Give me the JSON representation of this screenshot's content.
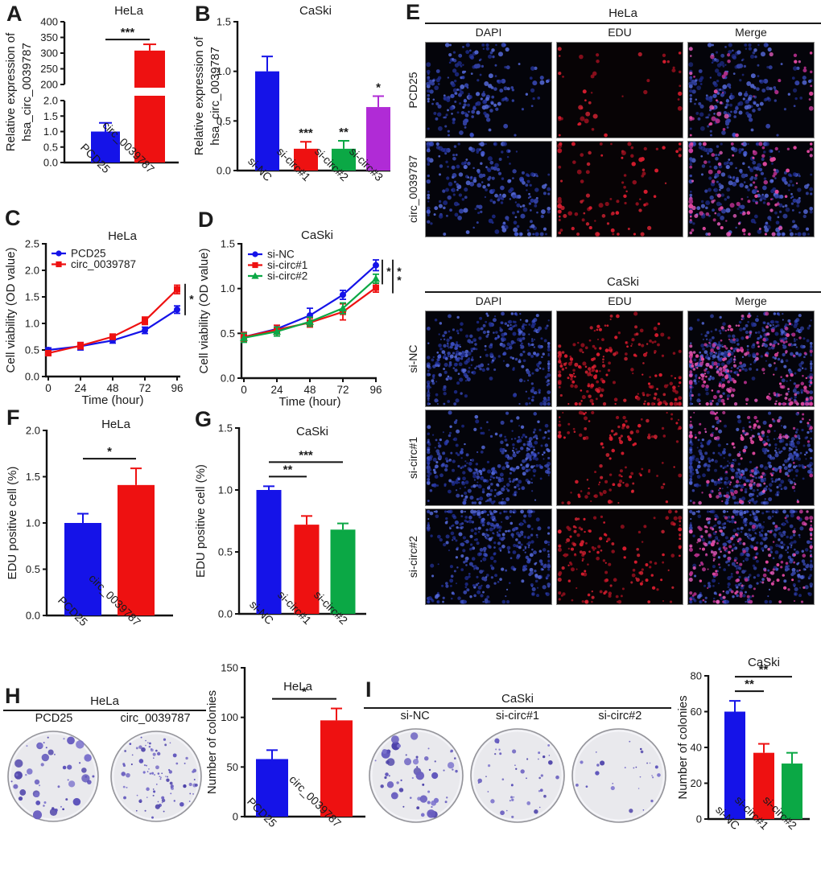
{
  "panel_letters": {
    "a": "A",
    "b": "B",
    "c": "C",
    "d": "D",
    "e": "E",
    "f": "F",
    "g": "G",
    "h": "H",
    "i": "I"
  },
  "accent_colors": {
    "blue": "#1513e8",
    "red": "#ee1111",
    "green": "#0ba845",
    "purple": "#b02bd6"
  },
  "fluorescence_colors": {
    "dapi": [
      "#2a3bb0",
      "#3d52cc",
      "#1e2c8e",
      "#5468d6",
      "#32409f"
    ],
    "edu": [
      "#c01325",
      "#e02535",
      "#97101e",
      "#d61c2e"
    ],
    "merge_red": [
      "#d63fa5",
      "#e65cbd",
      "#b72f8d",
      "#e0489f"
    ],
    "colony": [
      "#5b51ba",
      "#4a3fa8",
      "#6a5fc0",
      "#7a71cc"
    ]
  },
  "micro": {
    "hela": {
      "cell_line": "HeLa",
      "columns": [
        "DAPI",
        "EDU",
        "Merge"
      ],
      "rows": [
        {
          "label": "PCD25",
          "dapi_cells": 210,
          "edu_cells": 42,
          "seed": 11,
          "dot_scale": 1.0
        },
        {
          "label": "circ_0039787",
          "dapi_cells": 255,
          "edu_cells": 95,
          "seed": 23,
          "dot_scale": 1.0
        }
      ]
    },
    "caski": {
      "cell_line": "CaSki",
      "columns": [
        "DAPI",
        "EDU",
        "Merge"
      ],
      "rows": [
        {
          "label": "si-NC",
          "dapi_cells": 400,
          "edu_cells": 225,
          "seed": 37,
          "dot_scale": 0.85
        },
        {
          "label": "si-circ#1",
          "dapi_cells": 400,
          "edu_cells": 125,
          "seed": 49,
          "dot_scale": 0.85
        },
        {
          "label": "si-circ#2",
          "dapi_cells": 400,
          "edu_cells": 160,
          "seed": 61,
          "dot_scale": 0.85
        }
      ]
    }
  },
  "colony_h": {
    "cell_line": "HeLa",
    "dishes": [
      {
        "label": "PCD25",
        "colonies": 50,
        "big": true,
        "seed": 7
      },
      {
        "label": "circ_0039787",
        "colonies": 92,
        "big": false,
        "seed": 8
      }
    ]
  },
  "colony_i": {
    "cell_line": "CaSki",
    "dishes": [
      {
        "label": "si-NC",
        "colonies": 58,
        "big": true,
        "seed": 9
      },
      {
        "label": "si-circ#1",
        "colonies": 42,
        "big": false,
        "seed": 10
      },
      {
        "label": "si-circ#2",
        "colonies": 26,
        "big": false,
        "seed": 12
      }
    ]
  },
  "chart_data": [
    {
      "id": "A",
      "type": "bar",
      "broken_axis": true,
      "title": "HeLa",
      "ylabel_lines": [
        "Relative expression of",
        "hsa_circ_0039787"
      ],
      "categories": [
        "PCD25",
        "circ_0039787"
      ],
      "values": [
        1.0,
        308
      ],
      "errors": [
        0.28,
        20
      ],
      "colors": [
        "blue",
        "red"
      ],
      "axis_top": {
        "ylim": [
          200,
          400
        ],
        "ticks": [
          "200",
          "250",
          "300",
          "350",
          "400"
        ]
      },
      "axis_bottom": {
        "ylim": [
          0,
          2
        ],
        "ticks": [
          "0.0",
          "0.5",
          "1.0",
          "1.5",
          "2.0"
        ]
      },
      "sig_lines": [
        {
          "from": 0,
          "to": 1,
          "stars": "***"
        }
      ]
    },
    {
      "id": "B",
      "type": "bar",
      "title": "CaSki",
      "ylabel_lines": [
        "Relative expression of",
        "hsa_circ_0039787"
      ],
      "categories": [
        "si-NC",
        "si-circ#1",
        "si-circ#2",
        "si-circ#3"
      ],
      "values": [
        1.0,
        0.22,
        0.22,
        0.64
      ],
      "errors": [
        0.15,
        0.07,
        0.08,
        0.11
      ],
      "colors": [
        "blue",
        "red",
        "green",
        "purple"
      ],
      "ylim": [
        0,
        1.5
      ],
      "yticks": [
        "0.0",
        "0.5",
        "1.0",
        "1.5"
      ],
      "bar_stars": [
        "",
        "***",
        "**",
        "*"
      ]
    },
    {
      "id": "C",
      "type": "line",
      "title": "HeLa",
      "xlabel": "Time (hour)",
      "ylabel": "Cell viability (OD value)",
      "x": [
        0,
        24,
        48,
        72,
        96
      ],
      "xticks": [
        "0",
        "24",
        "48",
        "72",
        "96"
      ],
      "ylim": [
        0,
        2.5
      ],
      "yticks": [
        "0.0",
        "0.5",
        "1.0",
        "1.5",
        "2.0",
        "2.5"
      ],
      "series": [
        {
          "name": "PCD25",
          "color": "blue",
          "marker": "circle",
          "values": [
            0.5,
            0.57,
            0.68,
            0.87,
            1.26
          ],
          "errors": [
            0.04,
            0.07,
            0.05,
            0.06,
            0.07
          ]
        },
        {
          "name": "circ_0039787",
          "color": "red",
          "marker": "square",
          "values": [
            0.44,
            0.58,
            0.75,
            1.05,
            1.64
          ],
          "errors": [
            0.04,
            0.06,
            0.05,
            0.07,
            0.08
          ]
        }
      ],
      "brackets": [
        {
          "series_hi": 1,
          "series_lo": 0,
          "stars": "*"
        }
      ]
    },
    {
      "id": "D",
      "type": "line",
      "title": "CaSki",
      "xlabel": "Time (hour)",
      "ylabel": "Cell viability (OD value)",
      "x": [
        0,
        24,
        48,
        72,
        96
      ],
      "xticks": [
        "0",
        "24",
        "48",
        "72",
        "96"
      ],
      "ylim": [
        0,
        1.5
      ],
      "yticks": [
        "0.0",
        "0.5",
        "1.0",
        "1.5"
      ],
      "series": [
        {
          "name": "si-NC",
          "color": "blue",
          "marker": "circle",
          "values": [
            0.46,
            0.55,
            0.7,
            0.93,
            1.26
          ],
          "errors": [
            0.05,
            0.04,
            0.08,
            0.05,
            0.06
          ]
        },
        {
          "name": "si-circ#1",
          "color": "red",
          "marker": "square",
          "values": [
            0.46,
            0.54,
            0.62,
            0.74,
            1.01
          ],
          "errors": [
            0.05,
            0.05,
            0.05,
            0.09,
            0.05
          ]
        },
        {
          "name": "si-circ#2",
          "color": "green",
          "marker": "triangle",
          "values": [
            0.45,
            0.52,
            0.63,
            0.78,
            1.11
          ],
          "errors": [
            0.05,
            0.05,
            0.05,
            0.06,
            0.05
          ]
        }
      ],
      "brackets": [
        {
          "series_hi": 0,
          "series_lo": 2,
          "stars": "*"
        },
        {
          "series_hi": 0,
          "series_lo": 1,
          "stars": "**"
        }
      ]
    },
    {
      "id": "F",
      "type": "bar",
      "title": "HeLa",
      "ylabel": "EDU positive cell (%)",
      "categories": [
        "PCD25",
        "circ_0039787"
      ],
      "values": [
        1.0,
        1.41
      ],
      "errors": [
        0.1,
        0.18
      ],
      "colors": [
        "blue",
        "red"
      ],
      "ylim": [
        0,
        2
      ],
      "yticks": [
        "0.0",
        "0.5",
        "1.0",
        "1.5",
        "2.0"
      ],
      "sig_lines": [
        {
          "from": 0,
          "to": 1,
          "stars": "*"
        }
      ]
    },
    {
      "id": "G",
      "type": "bar",
      "title": "CaSki",
      "ylabel": "EDU positive cell (%)",
      "categories": [
        "si-NC",
        "si-circ#1",
        "si-circ#2"
      ],
      "values": [
        1.0,
        0.72,
        0.68
      ],
      "errors": [
        0.03,
        0.07,
        0.05
      ],
      "colors": [
        "blue",
        "red",
        "green"
      ],
      "ylim": [
        0,
        1.5
      ],
      "yticks": [
        "0.0",
        "0.5",
        "1.0",
        "1.5"
      ],
      "sig_lines": [
        {
          "from": 0,
          "to": 1,
          "stars": "**"
        },
        {
          "from": 0,
          "to": 2,
          "stars": "***"
        }
      ]
    },
    {
      "id": "H",
      "type": "bar",
      "title": "HeLa",
      "ylabel": "Number of colonies",
      "categories": [
        "PCD25",
        "circ_0039787"
      ],
      "values": [
        58,
        97
      ],
      "errors": [
        9,
        12
      ],
      "colors": [
        "blue",
        "red"
      ],
      "ylim": [
        0,
        150
      ],
      "yticks": [
        "0",
        "50",
        "100",
        "150"
      ],
      "sig_lines": [
        {
          "from": 0,
          "to": 1,
          "stars": "*"
        }
      ]
    },
    {
      "id": "I",
      "type": "bar",
      "title": "CaSki",
      "ylabel": "Number of colonies",
      "categories": [
        "si-NC",
        "si-circ#1",
        "si-circ#2"
      ],
      "values": [
        60,
        37,
        31
      ],
      "errors": [
        6,
        5,
        6
      ],
      "colors": [
        "blue",
        "red",
        "green"
      ],
      "ylim": [
        0,
        80
      ],
      "yticks": [
        "0",
        "20",
        "40",
        "60",
        "80"
      ],
      "sig_lines": [
        {
          "from": 0,
          "to": 1,
          "stars": "**"
        },
        {
          "from": 0,
          "to": 2,
          "stars": "**"
        }
      ]
    }
  ]
}
